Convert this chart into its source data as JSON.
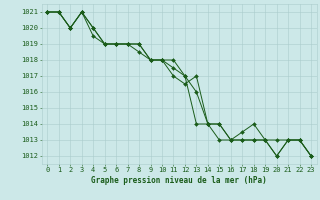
{
  "xlabel": "Graphe pression niveau de la mer (hPa)",
  "ylim": [
    1011.5,
    1021.5
  ],
  "xlim": [
    -0.5,
    23.5
  ],
  "yticks": [
    1012,
    1013,
    1014,
    1015,
    1016,
    1017,
    1018,
    1019,
    1020,
    1021
  ],
  "xticks": [
    0,
    1,
    2,
    3,
    4,
    5,
    6,
    7,
    8,
    9,
    10,
    11,
    12,
    13,
    14,
    15,
    16,
    17,
    18,
    19,
    20,
    21,
    22,
    23
  ],
  "background_color": "#cce8e8",
  "grid_color": "#aacccc",
  "line_color": "#1a5c1a",
  "series": [
    [
      1021,
      1021,
      1020,
      1021,
      1020,
      1019,
      1019,
      1019,
      1019,
      1018,
      1018,
      1017,
      1016.5,
      1017,
      1014,
      1014,
      1013,
      1013,
      1013,
      1013,
      1013,
      1013,
      1013,
      1012
    ],
    [
      1021,
      1021,
      1020,
      1021,
      1020,
      1019,
      1019,
      1019,
      1019,
      1018,
      1018,
      1018,
      1017,
      1014,
      1014,
      1013,
      1013,
      1013.5,
      1014,
      1013,
      1012,
      1013,
      1013,
      1012
    ],
    [
      1021,
      1021,
      1020,
      1021,
      1019.5,
      1019,
      1019,
      1019,
      1018.5,
      1018,
      1018,
      1017.5,
      1017,
      1016,
      1014,
      1014,
      1013,
      1013,
      1013,
      1013,
      1012,
      1013,
      1013,
      1012
    ]
  ],
  "tick_fontsize": 5,
  "xlabel_fontsize": 5.5,
  "marker_size": 2.0,
  "line_width": 0.7
}
